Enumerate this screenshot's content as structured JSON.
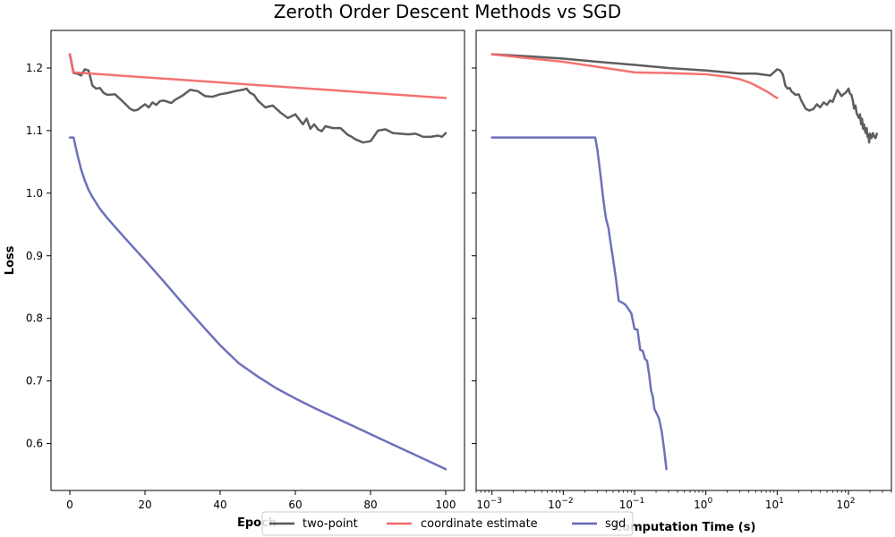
{
  "title": "Zeroth Order Descent Methods vs SGD",
  "colors": {
    "two_point": "#555555",
    "coordinate_estimate": "#f46a6a",
    "sgd": "#6569b6",
    "axis": "#000000",
    "background": "#ffffff"
  },
  "legend": {
    "placement": "bottom-center",
    "entries": [
      "two-point",
      "coordinate estimate",
      "sgd"
    ]
  },
  "chart_data": [
    {
      "type": "line",
      "xlabel": "Epoch",
      "ylabel": "Loss",
      "xlim": [
        -5,
        105
      ],
      "ylim": [
        0.525,
        1.26
      ],
      "xscale": "linear",
      "grid": false,
      "xticks": [
        0,
        20,
        40,
        60,
        80,
        100
      ],
      "yticks": [
        0.6,
        0.7,
        0.8,
        0.9,
        1.0,
        1.1,
        1.2
      ],
      "ytick_labels": [
        "0.6",
        "0.7",
        "0.8",
        "0.9",
        "1.0",
        "1.1",
        "1.2"
      ],
      "series": [
        {
          "name": "two-point",
          "color": "#555555",
          "x": [
            0,
            1,
            2,
            3,
            4,
            5,
            6,
            7,
            8,
            9,
            10,
            12,
            14,
            16,
            17,
            18,
            20,
            21,
            22,
            23,
            24,
            25,
            27,
            28,
            30,
            32,
            34,
            36,
            38,
            40,
            42,
            44,
            46,
            47,
            48,
            49,
            50,
            52,
            54,
            56,
            58,
            60,
            62,
            63,
            64,
            65,
            66,
            67,
            68,
            70,
            72,
            74,
            75,
            76,
            78,
            80,
            82,
            84,
            86,
            88,
            90,
            92,
            94,
            96,
            98,
            99,
            100
          ],
          "y": [
            1.222,
            1.192,
            1.191,
            1.188,
            1.198,
            1.196,
            1.172,
            1.167,
            1.168,
            1.16,
            1.157,
            1.158,
            1.147,
            1.135,
            1.132,
            1.133,
            1.142,
            1.137,
            1.145,
            1.141,
            1.147,
            1.148,
            1.144,
            1.149,
            1.156,
            1.165,
            1.163,
            1.155,
            1.154,
            1.158,
            1.16,
            1.163,
            1.165,
            1.167,
            1.16,
            1.157,
            1.148,
            1.137,
            1.14,
            1.129,
            1.12,
            1.126,
            1.11,
            1.119,
            1.103,
            1.11,
            1.102,
            1.099,
            1.107,
            1.104,
            1.104,
            1.093,
            1.09,
            1.086,
            1.081,
            1.083,
            1.1,
            1.102,
            1.096,
            1.095,
            1.094,
            1.095,
            1.09,
            1.09,
            1.092,
            1.09,
            1.096
          ]
        },
        {
          "name": "coordinate estimate",
          "color": "#f46a6a",
          "x": [
            0,
            1,
            100
          ],
          "y": [
            1.222,
            1.193,
            1.152
          ]
        },
        {
          "name": "sgd",
          "color": "#6569b6",
          "x": [
            0,
            1,
            2,
            3,
            4,
            5,
            6,
            8,
            10,
            15,
            20,
            25,
            30,
            35,
            40,
            45,
            50,
            55,
            60,
            65,
            70,
            75,
            80,
            85,
            90,
            95,
            100
          ],
          "y": [
            1.089,
            1.089,
            1.062,
            1.038,
            1.02,
            1.005,
            0.994,
            0.975,
            0.96,
            0.926,
            0.893,
            0.859,
            0.824,
            0.79,
            0.757,
            0.728,
            0.707,
            0.688,
            0.672,
            0.657,
            0.643,
            0.629,
            0.615,
            0.601,
            0.587,
            0.573,
            0.559
          ]
        }
      ]
    },
    {
      "type": "line",
      "xlabel": "Computation Time (s)",
      "ylabel": "",
      "xscale": "log",
      "xlim": [
        0.0006,
        400
      ],
      "ylim": [
        0.525,
        1.26
      ],
      "grid": false,
      "shared_y": true,
      "xticks": [
        0.001,
        0.01,
        0.1,
        1,
        10,
        100
      ],
      "xtick_labels": [
        "10",
        "10",
        "10",
        "10",
        "10",
        "10"
      ],
      "xtick_exponents": [
        "−3",
        "−2",
        "−1",
        "0",
        "1",
        "2"
      ],
      "series": [
        {
          "name": "two-point",
          "color": "#555555",
          "x": [
            0.001,
            0.003,
            0.01,
            0.03,
            0.1,
            0.3,
            1,
            3,
            5,
            8,
            10,
            11,
            12,
            13,
            14,
            15,
            16,
            17,
            18,
            20,
            22,
            25,
            28,
            32,
            36,
            40,
            45,
            50,
            55,
            60,
            65,
            70,
            75,
            80,
            85,
            90,
            95,
            100,
            105,
            110,
            115,
            120,
            125,
            130,
            135,
            140,
            145,
            150,
            155,
            160,
            165,
            170,
            175,
            180,
            185,
            190,
            195,
            200,
            210,
            220,
            230,
            240,
            250
          ],
          "y": [
            1.222,
            1.219,
            1.215,
            1.21,
            1.205,
            1.2,
            1.196,
            1.191,
            1.191,
            1.188,
            1.198,
            1.196,
            1.19,
            1.172,
            1.167,
            1.168,
            1.162,
            1.16,
            1.157,
            1.158,
            1.147,
            1.135,
            1.132,
            1.134,
            1.142,
            1.137,
            1.145,
            1.141,
            1.148,
            1.146,
            1.156,
            1.165,
            1.16,
            1.155,
            1.158,
            1.16,
            1.163,
            1.167,
            1.159,
            1.157,
            1.148,
            1.135,
            1.14,
            1.128,
            1.124,
            1.12,
            1.126,
            1.11,
            1.119,
            1.103,
            1.11,
            1.1,
            1.096,
            1.104,
            1.09,
            1.094,
            1.081,
            1.095,
            1.088,
            1.096,
            1.09,
            1.088,
            1.095
          ]
        },
        {
          "name": "coordinate estimate",
          "color": "#f46a6a",
          "x": [
            0.001,
            0.003,
            0.01,
            0.03,
            0.1,
            0.3,
            1,
            2,
            3,
            4,
            5,
            6,
            7,
            8,
            9,
            10
          ],
          "y": [
            1.222,
            1.216,
            1.21,
            1.202,
            1.193,
            1.192,
            1.19,
            1.186,
            1.182,
            1.177,
            1.172,
            1.167,
            1.163,
            1.159,
            1.155,
            1.152
          ]
        },
        {
          "name": "sgd",
          "color": "#6569b6",
          "x": [
            0.001,
            0.005,
            0.01,
            0.02,
            0.028,
            0.03,
            0.032,
            0.034,
            0.036,
            0.038,
            0.04,
            0.043,
            0.046,
            0.05,
            0.055,
            0.06,
            0.067,
            0.074,
            0.082,
            0.09,
            0.1,
            0.11,
            0.12,
            0.13,
            0.14,
            0.15,
            0.16,
            0.17,
            0.18,
            0.19,
            0.2,
            0.22,
            0.24,
            0.26,
            0.28
          ],
          "y": [
            1.089,
            1.089,
            1.089,
            1.089,
            1.089,
            1.07,
            1.045,
            1.02,
            0.995,
            0.975,
            0.958,
            0.945,
            0.922,
            0.895,
            0.862,
            0.828,
            0.825,
            0.822,
            0.815,
            0.808,
            0.783,
            0.782,
            0.75,
            0.748,
            0.735,
            0.732,
            0.71,
            0.685,
            0.675,
            0.655,
            0.65,
            0.64,
            0.62,
            0.59,
            0.559
          ]
        }
      ]
    }
  ]
}
